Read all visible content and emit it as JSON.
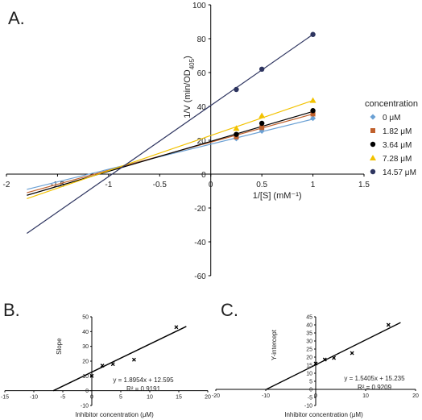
{
  "colors": {
    "axis": "#000000",
    "series": [
      "#6aa0d4",
      "#c0602c",
      "#000000",
      "#f2c200",
      "#2e3560"
    ]
  },
  "chart_data": [
    {
      "panel": "A.",
      "type": "line",
      "title": "",
      "xlabel": "1/[S] (mM⁻¹)",
      "ylabel_main": "1/V (min/OD",
      "ylabel_sub": "405",
      "ylabel_end": ")",
      "xlim": [
        -2,
        1.5
      ],
      "ylim": [
        -60,
        100
      ],
      "xticks": [
        -2,
        -1.5,
        -1,
        -0.5,
        0,
        0.5,
        1,
        1.5
      ],
      "yticks": [
        -60,
        -40,
        -20,
        0,
        20,
        40,
        60,
        80,
        100
      ],
      "grid": false,
      "legend": {
        "title": "concentration",
        "position": "right",
        "entries": [
          "0 μM",
          "1.82 μM",
          "3.64 μM",
          "7.28 μM",
          "14.57 μM"
        ]
      },
      "series": [
        {
          "name": "0 μM",
          "marker": "diamond",
          "x": [
            0.25,
            0.5,
            1
          ],
          "y": [
            21,
            25.5,
            33
          ],
          "fit": {
            "x": [
              -1.8,
              1
            ],
            "y": [
              -9,
              32.5
            ]
          }
        },
        {
          "name": "1.82 μM",
          "marker": "square",
          "x": [
            0.25,
            0.5,
            1
          ],
          "y": [
            22,
            27.5,
            35.5
          ],
          "fit": {
            "x": [
              -1.8,
              1
            ],
            "y": [
              -11,
              35.5
            ]
          }
        },
        {
          "name": "3.64 μM",
          "marker": "circle",
          "x": [
            0.25,
            0.5,
            1
          ],
          "y": [
            23.5,
            30,
            37.5
          ],
          "fit": {
            "x": [
              -1.8,
              1
            ],
            "y": [
              -12.5,
              37
            ]
          }
        },
        {
          "name": "7.28 μM",
          "marker": "triangle",
          "x": [
            0.25,
            0.5,
            1
          ],
          "y": [
            27,
            34.5,
            43.5
          ],
          "fit": {
            "x": [
              -1.8,
              1
            ],
            "y": [
              -14.5,
              43.5
            ]
          }
        },
        {
          "name": "14.57 μM",
          "marker": "circle",
          "x": [
            0.25,
            0.5,
            1
          ],
          "y": [
            50,
            62,
            82.5
          ],
          "fit": {
            "x": [
              -1.8,
              1
            ],
            "y": [
              -35,
              82.5
            ]
          }
        }
      ]
    },
    {
      "panel": "B.",
      "type": "scatter",
      "title": "",
      "xlabel": "Inhibitor concentration (μM)",
      "ylabel": "Slope",
      "xlim": [
        -15,
        20
      ],
      "ylim": [
        -10,
        50
      ],
      "xticks": [
        -15,
        -10,
        -5,
        0,
        5,
        10,
        15,
        20
      ],
      "yticks": [
        -10,
        0,
        10,
        20,
        30,
        40,
        50
      ],
      "grid": false,
      "x": [
        0,
        1.82,
        3.64,
        7.28,
        14.57
      ],
      "y": [
        10,
        17,
        18,
        21,
        43
      ],
      "equation": "y = 1.8954x + 12.595",
      "r2": "R² = 0.9191",
      "fit": {
        "slope": 1.8954,
        "intercept": 12.595,
        "x": [
          -6.65,
          16.3
        ]
      }
    },
    {
      "panel": "C.",
      "type": "scatter",
      "title": "",
      "xlabel": "Inhibitor concentration (μM)",
      "ylabel": "Y-intercept",
      "xlim": [
        -20,
        20
      ],
      "ylim": [
        -10,
        45
      ],
      "xticks": [
        -20,
        -10,
        0,
        10,
        20
      ],
      "yticks": [
        -10,
        -5,
        0,
        5,
        10,
        15,
        20,
        25,
        30,
        35,
        40,
        45
      ],
      "grid": false,
      "x": [
        0,
        1.82,
        3.64,
        7.28,
        14.57
      ],
      "y": [
        16,
        18.5,
        19.5,
        22.5,
        40
      ],
      "equation": "y = 1.5405x + 15.235",
      "r2": "R² = 0.9209",
      "fit": {
        "slope": 1.5405,
        "intercept": 15.235,
        "x": [
          -9.9,
          17
        ]
      }
    }
  ]
}
